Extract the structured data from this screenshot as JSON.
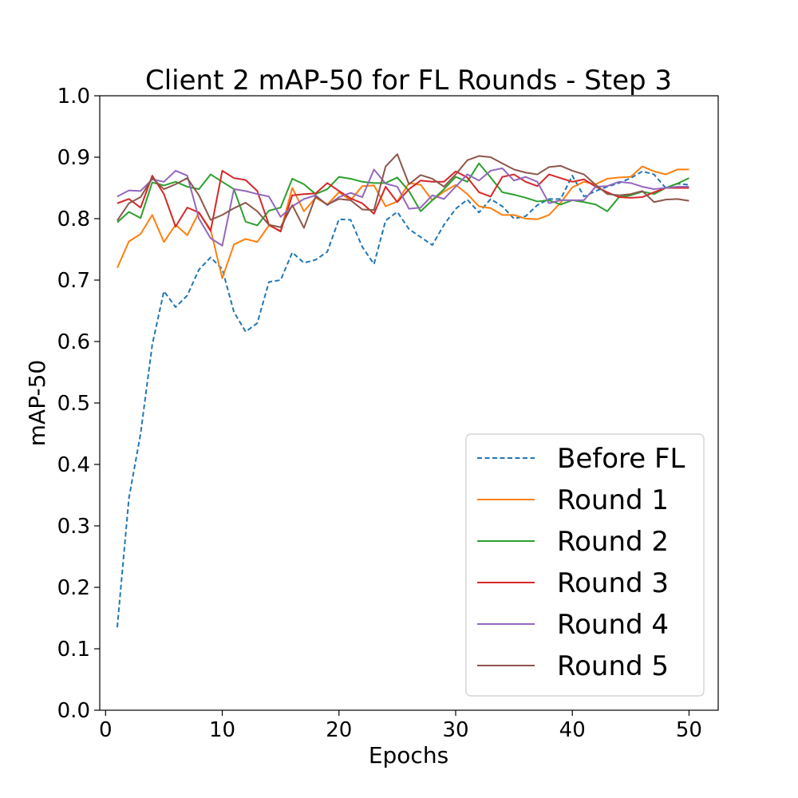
{
  "chart_data": {
    "type": "line",
    "title": "Client 2 mAP-50 for FL Rounds - Step 3",
    "xlabel": "Epochs",
    "ylabel": "mAP-50",
    "xlim": [
      -0.5,
      52.5
    ],
    "ylim": [
      0.0,
      1.0
    ],
    "xticks": [
      0,
      10,
      20,
      30,
      40,
      50
    ],
    "xtick_labels": [
      "0",
      "10",
      "20",
      "30",
      "40",
      "50"
    ],
    "yticks": [
      0.0,
      0.1,
      0.2,
      0.3,
      0.4,
      0.5,
      0.6,
      0.7,
      0.8,
      0.9,
      1.0
    ],
    "ytick_labels": [
      "0.0",
      "0.1",
      "0.2",
      "0.3",
      "0.4",
      "0.5",
      "0.6",
      "0.7",
      "0.8",
      "0.9",
      "1.0"
    ],
    "grid": false,
    "legend_position": "lower-right",
    "x": [
      1,
      2,
      3,
      4,
      5,
      6,
      7,
      8,
      9,
      10,
      11,
      12,
      13,
      14,
      15,
      16,
      17,
      18,
      19,
      20,
      21,
      22,
      23,
      24,
      25,
      26,
      27,
      28,
      29,
      30,
      31,
      32,
      33,
      34,
      35,
      36,
      37,
      38,
      39,
      40,
      41,
      42,
      43,
      44,
      45,
      46,
      47,
      48,
      49,
      50
    ],
    "series": [
      {
        "name": "Before FL",
        "color": "#1f77b4",
        "dashed": true,
        "values": [
          0.135,
          0.345,
          0.45,
          0.595,
          0.682,
          0.656,
          0.675,
          0.717,
          0.737,
          0.718,
          0.648,
          0.616,
          0.63,
          0.697,
          0.7,
          0.745,
          0.728,
          0.733,
          0.746,
          0.799,
          0.798,
          0.754,
          0.726,
          0.797,
          0.811,
          0.783,
          0.77,
          0.757,
          0.79,
          0.816,
          0.831,
          0.81,
          0.832,
          0.82,
          0.8,
          0.804,
          0.822,
          0.832,
          0.832,
          0.87,
          0.836,
          0.845,
          0.852,
          0.858,
          0.866,
          0.877,
          0.872,
          0.85,
          0.857,
          0.855
        ]
      },
      {
        "name": "Round 1",
        "color": "#ff7f0e",
        "dashed": false,
        "values": [
          0.72,
          0.763,
          0.775,
          0.806,
          0.762,
          0.79,
          0.773,
          0.81,
          0.782,
          0.703,
          0.758,
          0.767,
          0.762,
          0.789,
          0.78,
          0.85,
          0.812,
          0.834,
          0.823,
          0.843,
          0.83,
          0.853,
          0.854,
          0.82,
          0.828,
          0.858,
          0.855,
          0.83,
          0.844,
          0.855,
          0.84,
          0.82,
          0.817,
          0.806,
          0.806,
          0.8,
          0.799,
          0.806,
          0.826,
          0.851,
          0.86,
          0.856,
          0.865,
          0.867,
          0.868,
          0.885,
          0.877,
          0.872,
          0.88,
          0.88
        ]
      },
      {
        "name": "Round 2",
        "color": "#2ca02c",
        "dashed": false,
        "values": [
          0.794,
          0.811,
          0.801,
          0.859,
          0.854,
          0.86,
          0.852,
          0.848,
          0.872,
          0.86,
          0.848,
          0.795,
          0.789,
          0.813,
          0.818,
          0.865,
          0.856,
          0.84,
          0.848,
          0.868,
          0.865,
          0.86,
          0.858,
          0.858,
          0.867,
          0.845,
          0.812,
          0.83,
          0.848,
          0.868,
          0.86,
          0.89,
          0.867,
          0.843,
          0.839,
          0.834,
          0.828,
          0.83,
          0.823,
          0.83,
          0.827,
          0.823,
          0.812,
          0.835,
          0.838,
          0.844,
          0.84,
          0.85,
          0.857,
          0.866
        ]
      },
      {
        "name": "Round 3",
        "color": "#d62728",
        "dashed": false,
        "values": [
          0.825,
          0.832,
          0.818,
          0.87,
          0.84,
          0.787,
          0.818,
          0.81,
          0.78,
          0.878,
          0.866,
          0.863,
          0.845,
          0.79,
          0.779,
          0.838,
          0.84,
          0.841,
          0.858,
          0.845,
          0.833,
          0.825,
          0.808,
          0.852,
          0.827,
          0.848,
          0.862,
          0.86,
          0.86,
          0.877,
          0.867,
          0.843,
          0.836,
          0.868,
          0.872,
          0.86,
          0.853,
          0.872,
          0.866,
          0.86,
          0.864,
          0.852,
          0.843,
          0.835,
          0.834,
          0.835,
          0.843,
          0.85,
          0.85,
          0.85
        ]
      },
      {
        "name": "Round 4",
        "color": "#9467bd",
        "dashed": false,
        "values": [
          0.836,
          0.846,
          0.845,
          0.864,
          0.86,
          0.878,
          0.87,
          0.8,
          0.768,
          0.756,
          0.848,
          0.845,
          0.84,
          0.836,
          0.803,
          0.82,
          0.832,
          0.838,
          0.822,
          0.835,
          0.842,
          0.835,
          0.88,
          0.857,
          0.852,
          0.816,
          0.818,
          0.838,
          0.832,
          0.852,
          0.872,
          0.862,
          0.878,
          0.882,
          0.862,
          0.868,
          0.86,
          0.825,
          0.83,
          0.83,
          0.83,
          0.852,
          0.853,
          0.86,
          0.858,
          0.852,
          0.848,
          0.85,
          0.852,
          0.852
        ]
      },
      {
        "name": "Round 5",
        "color": "#8c564b",
        "dashed": false,
        "values": [
          0.797,
          0.825,
          0.835,
          0.866,
          0.848,
          0.856,
          0.866,
          0.838,
          0.798,
          0.806,
          0.817,
          0.826,
          0.812,
          0.79,
          0.786,
          0.822,
          0.785,
          0.836,
          0.823,
          0.832,
          0.83,
          0.815,
          0.814,
          0.885,
          0.905,
          0.856,
          0.871,
          0.865,
          0.852,
          0.872,
          0.895,
          0.902,
          0.9,
          0.89,
          0.88,
          0.875,
          0.872,
          0.884,
          0.886,
          0.878,
          0.872,
          0.855,
          0.84,
          0.838,
          0.84,
          0.845,
          0.827,
          0.831,
          0.832,
          0.829
        ]
      }
    ]
  }
}
